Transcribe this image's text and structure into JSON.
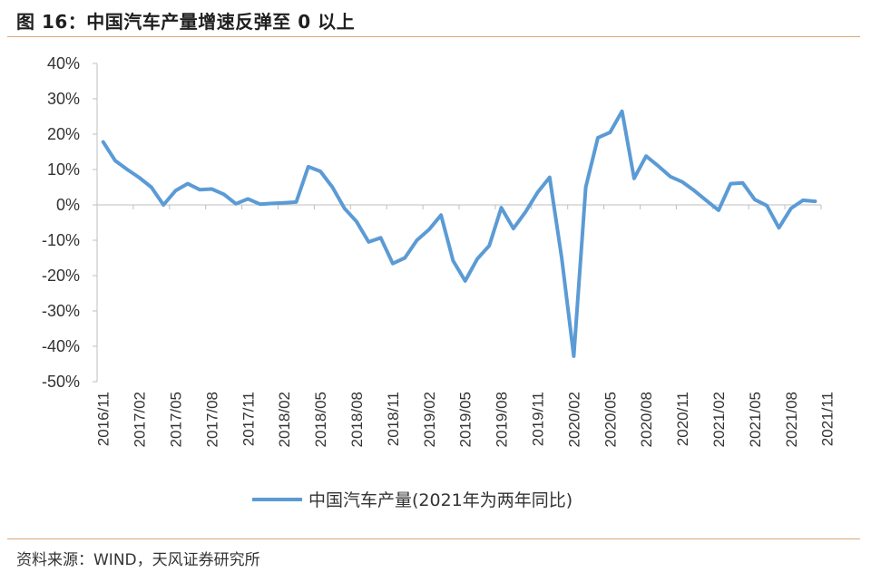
{
  "header": {
    "title": "图 16：中国汽车产量增速反弹至 0 以上"
  },
  "footer": {
    "source": "资料来源：WIND，天风证券研究所"
  },
  "chart_data": {
    "type": "line",
    "title": "图 16：中国汽车产量增速反弹至 0 以上",
    "xlabel": "",
    "ylabel": "",
    "ylim": [
      -50,
      40
    ],
    "y_ticks": [
      "40%",
      "30%",
      "20%",
      "10%",
      "0%",
      "-10%",
      "-20%",
      "-30%",
      "-40%",
      "-50%"
    ],
    "y_tick_values": [
      40,
      30,
      20,
      10,
      0,
      -10,
      -20,
      -30,
      -40,
      -50
    ],
    "x_tick_labels": [
      "2016/11",
      "2017/02",
      "2017/05",
      "2017/08",
      "2017/11",
      "2018/02",
      "2018/05",
      "2018/08",
      "2018/11",
      "2019/02",
      "2019/05",
      "2019/08",
      "2019/11",
      "2020/02",
      "2020/05",
      "2020/08",
      "2020/11",
      "2021/02",
      "2021/05",
      "2021/08",
      "2021/11"
    ],
    "legend": "top-bottom-center",
    "color": "#5b9bd5",
    "series": [
      {
        "name": "中国汽车产量(2021年为两年同比)",
        "values": [
          17.8,
          12.5,
          10.0,
          7.7,
          5.0,
          0.0,
          4.0,
          6.0,
          4.3,
          4.5,
          3.0,
          0.3,
          1.7,
          0.2,
          0.4,
          0.6,
          0.8,
          10.8,
          9.5,
          5.0,
          -1.0,
          -4.7,
          -10.5,
          -9.3,
          -16.6,
          -15.0,
          -10.0,
          -7.0,
          -2.9,
          -15.8,
          -21.5,
          -15.3,
          -11.5,
          -0.8,
          -6.7,
          -2.0,
          3.5,
          7.8,
          -15.0,
          -42.8,
          5.0,
          19.0,
          20.5,
          26.5,
          7.5,
          13.8,
          11.0,
          8.0,
          6.5,
          4.0,
          1.2,
          -1.5,
          6.0,
          6.2,
          1.5,
          -0.2,
          -6.5,
          -1.0,
          1.3,
          1.0
        ]
      }
    ]
  }
}
